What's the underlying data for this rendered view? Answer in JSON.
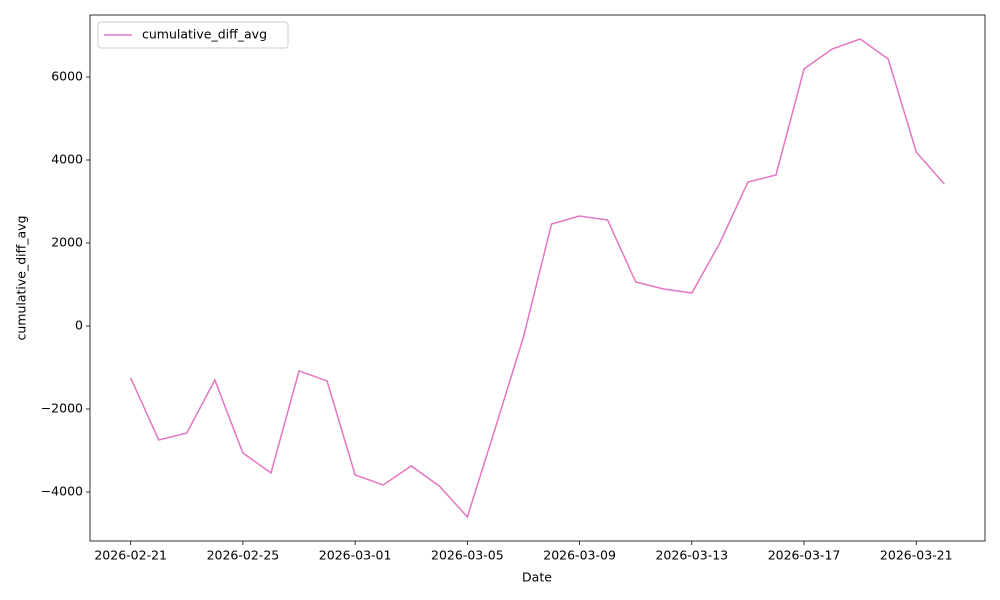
{
  "chart_data": {
    "type": "line",
    "x_label": "Date",
    "y_label": "cumulative_diff_avg",
    "x": [
      "2026-02-21",
      "2026-02-22",
      "2026-02-23",
      "2026-02-24",
      "2026-02-25",
      "2026-02-26",
      "2026-02-27",
      "2026-02-28",
      "2026-03-01",
      "2026-03-02",
      "2026-03-03",
      "2026-03-04",
      "2026-03-05",
      "2026-03-06",
      "2026-03-07",
      "2026-03-08",
      "2026-03-09",
      "2026-03-10",
      "2026-03-11",
      "2026-03-12",
      "2026-03-13",
      "2026-03-14",
      "2026-03-15",
      "2026-03-16",
      "2026-03-17",
      "2026-03-18",
      "2026-03-19",
      "2026-03-20",
      "2026-03-21",
      "2026-03-22"
    ],
    "series": [
      {
        "name": "cumulative_diff_avg",
        "color": "#e377c2",
        "values": [
          -1253,
          -2747,
          -2578,
          -1301,
          -3060,
          -3542,
          -1084,
          -1325,
          -3590,
          -3831,
          -3373,
          -3855,
          -4602,
          -2450,
          -265,
          2458,
          2651,
          2554,
          1060,
          892,
          795,
          2000,
          3470,
          3639,
          6193,
          6675,
          6916,
          6434,
          4193,
          3422
        ]
      }
    ],
    "xlim": [
      "2026-02-19T13:12:00Z",
      "2026-03-23T10:48:00Z"
    ],
    "xticks": [
      "2026-02-21",
      "2026-02-25",
      "2026-03-01",
      "2026-03-05",
      "2026-03-09",
      "2026-03-13",
      "2026-03-17",
      "2026-03-21"
    ],
    "ylim": [
      -5181,
      7494
    ],
    "yticks": [
      {
        "value": -4000,
        "label": "−4000"
      },
      {
        "value": -2000,
        "label": "−2000"
      },
      0,
      2000,
      4000,
      6000
    ],
    "legend": "upper left"
  }
}
